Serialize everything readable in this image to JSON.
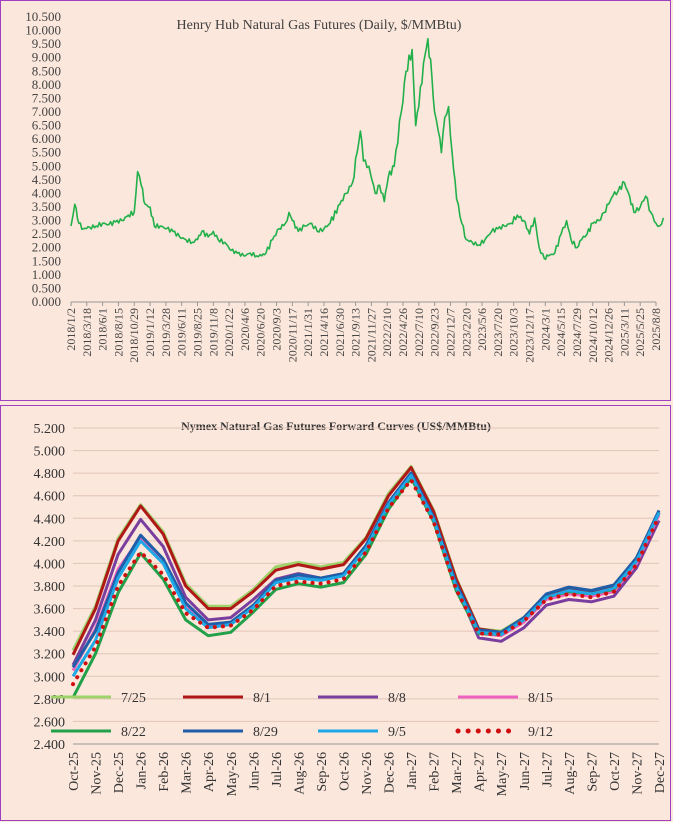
{
  "chart_data": [
    {
      "type": "line",
      "title": "Henry Hub Natural Gas Futures (Daily, $/MMBtu)",
      "ylim": [
        0,
        10.5
      ],
      "yticks": [
        "0.000",
        "0.500",
        "1.000",
        "1.500",
        "2.000",
        "2.500",
        "3.000",
        "3.500",
        "4.000",
        "4.500",
        "5.000",
        "5.500",
        "6.000",
        "6.500",
        "7.000",
        "7.500",
        "8.000",
        "8.500",
        "9.000",
        "9.500",
        "10.000",
        "10.500"
      ],
      "xtick_labels": [
        "2018/1/2",
        "2018/3/18",
        "2018/6/1",
        "2018/8/15",
        "2018/10/29",
        "2019/1/12",
        "2019/3/28",
        "2019/6/11",
        "2019/8/25",
        "2019/11/8",
        "2020/1/22",
        "2020/4/6",
        "2020/6/20",
        "2020/9/3",
        "2020/11/17",
        "2021/1/31",
        "2021/4/16",
        "2021/6/30",
        "2021/9/13",
        "2021/11/27",
        "2022/2/10",
        "2022/4/26",
        "2022/7/10",
        "2022/9/23",
        "2022/12/7",
        "2023/2/20",
        "2023/5/6",
        "2023/7/20",
        "2023/10/3",
        "2023/12/17",
        "2024/3/1",
        "2024/5/15",
        "2024/7/29",
        "2024/10/12",
        "2024/12/26",
        "2025/3/11",
        "2025/5/25",
        "2025/8/8"
      ],
      "color": "#22b04a",
      "series": [
        {
          "x": [
            "2018/1/2",
            "2018/1/20",
            "2018/2/8",
            "2018/3/1",
            "2018/4/1",
            "2018/5/1",
            "2018/6/1",
            "2018/7/1",
            "2018/8/1",
            "2018/9/1",
            "2018/10/1",
            "2018/10/29",
            "2018/11/14",
            "2018/12/1",
            "2018/12/20",
            "2019/1/12",
            "2019/2/1",
            "2019/3/1",
            "2019/4/1",
            "2019/5/1",
            "2019/6/1",
            "2019/7/1",
            "2019/8/1",
            "2019/8/25",
            "2019/9/15",
            "2019/10/15",
            "2019/11/8",
            "2019/12/1",
            "2020/1/1",
            "2020/2/1",
            "2020/3/1",
            "2020/4/1",
            "2020/5/1",
            "2020/6/1",
            "2020/6/25",
            "2020/7/15",
            "2020/8/15",
            "2020/9/15",
            "2020/10/15",
            "2020/11/1",
            "2020/11/17",
            "2020/12/15",
            "2021/1/15",
            "2021/2/17",
            "2021/3/15",
            "2021/4/16",
            "2021/5/15",
            "2021/6/30",
            "2021/7/30",
            "2021/8/30",
            "2021/9/20",
            "2021/10/6",
            "2021/10/20",
            "2021/11/15",
            "2021/12/15",
            "2022/1/5",
            "2022/1/27",
            "2022/2/15",
            "2022/3/15",
            "2022/4/18",
            "2022/5/10",
            "2022/6/8",
            "2022/6/25",
            "2022/7/10",
            "2022/8/1",
            "2022/8/22",
            "2022/9/10",
            "2022/9/23",
            "2022/10/10",
            "2022/10/25",
            "2022/11/10",
            "2022/11/28",
            "2022/12/15",
            "2023/1/5",
            "2023/1/30",
            "2023/2/20",
            "2023/3/20",
            "2023/4/20",
            "2023/5/20",
            "2023/6/20",
            "2023/7/20",
            "2023/8/20",
            "2023/9/20",
            "2023/10/20",
            "2023/11/20",
            "2023/12/17",
            "2024/1/10",
            "2024/2/1",
            "2024/2/25",
            "2024/3/15",
            "2024/4/15",
            "2024/5/15",
            "2024/6/10",
            "2024/7/1",
            "2024/7/29",
            "2024/8/20",
            "2024/9/15",
            "2024/10/12",
            "2024/11/10",
            "2024/12/5",
            "2024/12/26",
            "2025/1/15",
            "2025/2/10",
            "2025/3/11",
            "2025/4/5",
            "2025/4/25",
            "2025/5/25",
            "2025/6/20",
            "2025/7/15",
            "2025/8/8",
            "2025/8/25",
            "2025/9/12"
          ],
          "y": [
            2.8,
            3.6,
            2.9,
            2.7,
            2.75,
            2.8,
            2.9,
            2.85,
            2.95,
            3.0,
            3.2,
            3.3,
            4.8,
            4.3,
            3.6,
            3.5,
            2.8,
            2.8,
            2.7,
            2.6,
            2.4,
            2.3,
            2.2,
            2.3,
            2.6,
            2.4,
            2.6,
            2.3,
            2.2,
            1.9,
            1.8,
            1.7,
            1.8,
            1.7,
            1.7,
            1.8,
            2.3,
            2.7,
            2.9,
            3.3,
            3.0,
            2.6,
            2.8,
            2.9,
            2.6,
            2.7,
            2.9,
            3.6,
            4.0,
            4.4,
            5.5,
            6.3,
            5.2,
            5.0,
            4.0,
            4.3,
            3.7,
            4.6,
            5.0,
            7.0,
            8.5,
            9.3,
            6.5,
            7.2,
            8.8,
            9.7,
            8.3,
            7.0,
            6.3,
            5.5,
            6.8,
            7.2,
            5.5,
            3.8,
            2.9,
            2.3,
            2.2,
            2.1,
            2.3,
            2.6,
            2.7,
            2.8,
            2.9,
            3.2,
            3.0,
            2.5,
            3.1,
            2.0,
            1.6,
            1.7,
            1.8,
            2.5,
            3.0,
            2.3,
            2.0,
            2.3,
            2.5,
            2.9,
            3.0,
            3.3,
            3.6,
            3.9,
            4.1,
            4.4,
            3.9,
            3.3,
            3.5,
            3.9,
            3.3,
            2.9,
            2.8,
            3.1
          ]
        }
      ]
    },
    {
      "type": "line",
      "title": "Nymex  Natural  Gas  Futures  Forward   Curves  (US$/MMBtu)",
      "ylim": [
        2.4,
        5.2
      ],
      "yticks": [
        "2.400",
        "2.600",
        "2.800",
        "3.000",
        "3.200",
        "3.400",
        "3.600",
        "3.800",
        "4.000",
        "4.200",
        "4.400",
        "4.600",
        "4.800",
        "5.000",
        "5.200"
      ],
      "categories": [
        "Oct-25",
        "Nov-25",
        "Dec-25",
        "Jan-26",
        "Feb-26",
        "Mar-26",
        "Apr-26",
        "May-26",
        "Jun-26",
        "Jul-26",
        "Aug-26",
        "Sep-26",
        "Oct-26",
        "Nov-26",
        "Dec-26",
        "Jan-27",
        "Feb-27",
        "Mar-27",
        "Apr-27",
        "May-27",
        "Jun-27",
        "Jul-27",
        "Aug-27",
        "Sep-27",
        "Oct-27",
        "Nov-27",
        "Dec-27"
      ],
      "series": [
        {
          "name": "7/25",
          "color": "#9ed36a",
          "dash": "",
          "values": [
            3.23,
            3.62,
            4.22,
            4.52,
            4.28,
            3.82,
            3.62,
            3.62,
            3.77,
            3.97,
            4.01,
            3.97,
            4.01,
            4.23,
            4.62,
            4.86,
            4.47,
            3.87,
            3.42,
            3.4,
            3.52,
            3.72,
            3.78,
            3.76,
            3.8,
            4.05,
            4.46
          ]
        },
        {
          "name": "8/1",
          "color": "#b01818",
          "dash": "",
          "values": [
            3.19,
            3.6,
            4.2,
            4.51,
            4.26,
            3.8,
            3.6,
            3.6,
            3.75,
            3.94,
            3.99,
            3.95,
            3.99,
            4.22,
            4.6,
            4.85,
            4.46,
            3.86,
            3.42,
            3.39,
            3.51,
            3.71,
            3.77,
            3.75,
            3.79,
            4.04,
            4.45
          ]
        },
        {
          "name": "8/8",
          "color": "#7a3f9e",
          "dash": "",
          "values": [
            3.1,
            3.5,
            4.08,
            4.39,
            4.15,
            3.7,
            3.5,
            3.52,
            3.68,
            3.86,
            3.91,
            3.87,
            3.91,
            4.15,
            4.54,
            4.8,
            4.41,
            3.8,
            3.34,
            3.31,
            3.43,
            3.63,
            3.68,
            3.66,
            3.71,
            3.96,
            4.38
          ]
        },
        {
          "name": "8/15",
          "color": "#f060c0",
          "dash": "",
          "values": [
            3.05,
            3.42,
            3.95,
            4.23,
            4.02,
            3.64,
            3.44,
            3.46,
            3.62,
            3.83,
            3.88,
            3.85,
            3.89,
            4.14,
            4.52,
            4.79,
            4.4,
            3.8,
            3.38,
            3.36,
            3.48,
            3.68,
            3.73,
            3.71,
            3.75,
            4.0,
            4.43
          ]
        },
        {
          "name": "8/22",
          "color": "#22a04a",
          "dash": "",
          "values": [
            2.81,
            3.2,
            3.74,
            4.09,
            3.86,
            3.5,
            3.36,
            3.39,
            3.57,
            3.77,
            3.82,
            3.79,
            3.83,
            4.08,
            4.48,
            4.76,
            4.37,
            3.76,
            3.38,
            3.37,
            3.5,
            3.7,
            3.75,
            3.73,
            3.77,
            4.02,
            4.45
          ]
        },
        {
          "name": "8/29",
          "color": "#1f5ea8",
          "dash": "",
          "values": [
            3.08,
            3.4,
            3.92,
            4.25,
            4.04,
            3.65,
            3.46,
            3.48,
            3.63,
            3.85,
            3.9,
            3.87,
            3.91,
            4.16,
            4.54,
            4.8,
            4.41,
            3.82,
            3.41,
            3.39,
            3.52,
            3.73,
            3.79,
            3.76,
            3.81,
            4.05,
            4.47
          ]
        },
        {
          "name": "9/5",
          "color": "#1ea9e6",
          "dash": "",
          "values": [
            3.0,
            3.32,
            3.87,
            4.2,
            4.0,
            3.6,
            3.43,
            3.46,
            3.61,
            3.83,
            3.87,
            3.85,
            3.89,
            4.13,
            4.52,
            4.78,
            4.39,
            3.79,
            3.39,
            3.37,
            3.5,
            3.7,
            3.76,
            3.73,
            3.78,
            4.02,
            4.45
          ]
        },
        {
          "name": "9/12",
          "color": "#d01010",
          "dash": "dot",
          "values": [
            2.93,
            3.26,
            3.8,
            4.1,
            3.9,
            3.56,
            3.43,
            3.45,
            3.59,
            3.8,
            3.84,
            3.82,
            3.86,
            4.1,
            4.49,
            4.74,
            4.37,
            3.77,
            3.38,
            3.37,
            3.49,
            3.68,
            3.73,
            3.7,
            3.75,
            3.99,
            4.42
          ]
        }
      ]
    }
  ]
}
